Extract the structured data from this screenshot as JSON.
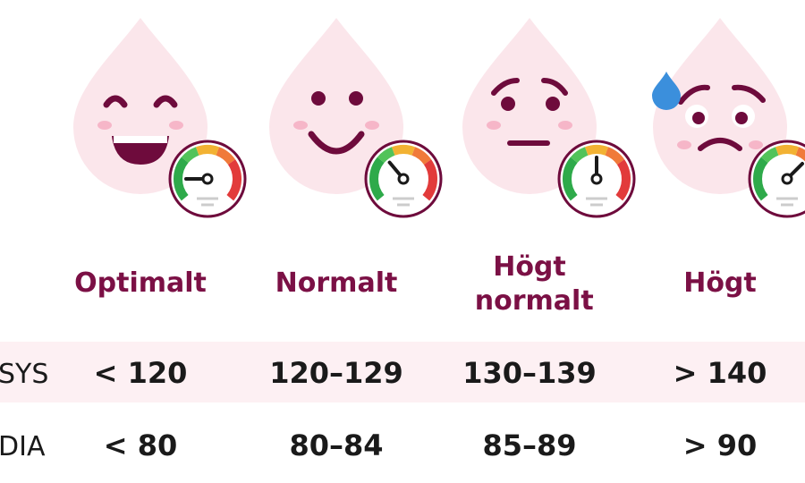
{
  "rows": {
    "sys": "SYS",
    "dia": "DIA"
  },
  "columns": [
    {
      "label": "Optimalt",
      "sys": "< 120",
      "dia": "< 80"
    },
    {
      "label": "Normalt",
      "sys": "120–129",
      "dia": "80–84"
    },
    {
      "label": "Högt normalt",
      "sys": "130–139",
      "dia": "85–89"
    },
    {
      "label": "Högt",
      "sys": "> 140",
      "dia": "> 90"
    }
  ]
}
